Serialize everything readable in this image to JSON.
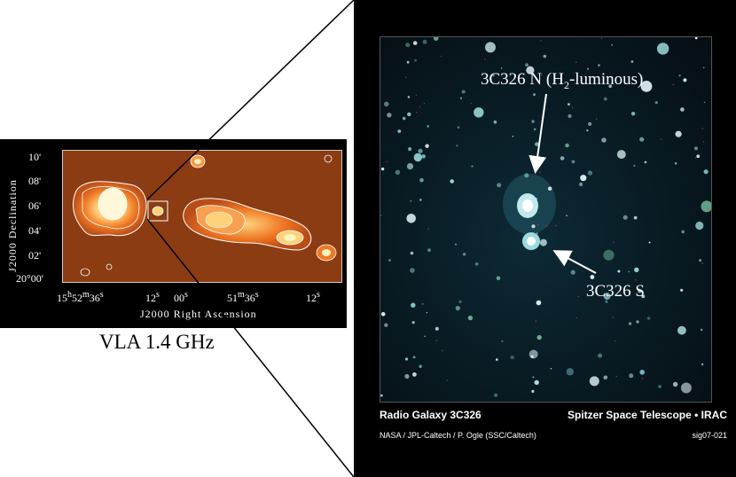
{
  "radio": {
    "dec_ticks": [
      "10'",
      "08'",
      "06'",
      "04'",
      "02'",
      "20°00'"
    ],
    "ra_ticks": [
      "15h52m36s",
      "12s",
      "00s",
      "51m36s",
      "12s"
    ],
    "ra_ticks_display": [
      {
        "main": "15",
        "sup1": "h",
        "mid": "52",
        "sup2": "m",
        "end": "36",
        "sup3": "s"
      },
      {
        "main": "12",
        "sup1": "s"
      },
      {
        "main": "00",
        "sup1": "s"
      },
      {
        "main": "51",
        "sup1": "m",
        "mid": "36",
        "sup2": "s"
      },
      {
        "main": "12",
        "sup1": "s"
      }
    ],
    "dec_axis_label": "J2000 Declination",
    "ra_axis_label": "J2000 Right Ascension",
    "caption": "VLA 1.4 GHz",
    "colors": {
      "background": "#8b3c12",
      "lobe_outer": "#e0651e",
      "lobe_core": "#fff3c0"
    }
  },
  "infrared": {
    "label_north": "3C326 N (H2-luminous)",
    "label_north_main": "3C326 N (H",
    "label_north_sub": "2",
    "label_north_tail": "-luminous)",
    "label_south": "3C326 S",
    "title": "Radio Galaxy 3C326",
    "telescope": "Spitzer Space Telescope • IRAC",
    "credit": "NASA / JPL-Caltech / P. Ogle (SSC/Caltech)",
    "image_id": "sig07-021"
  }
}
